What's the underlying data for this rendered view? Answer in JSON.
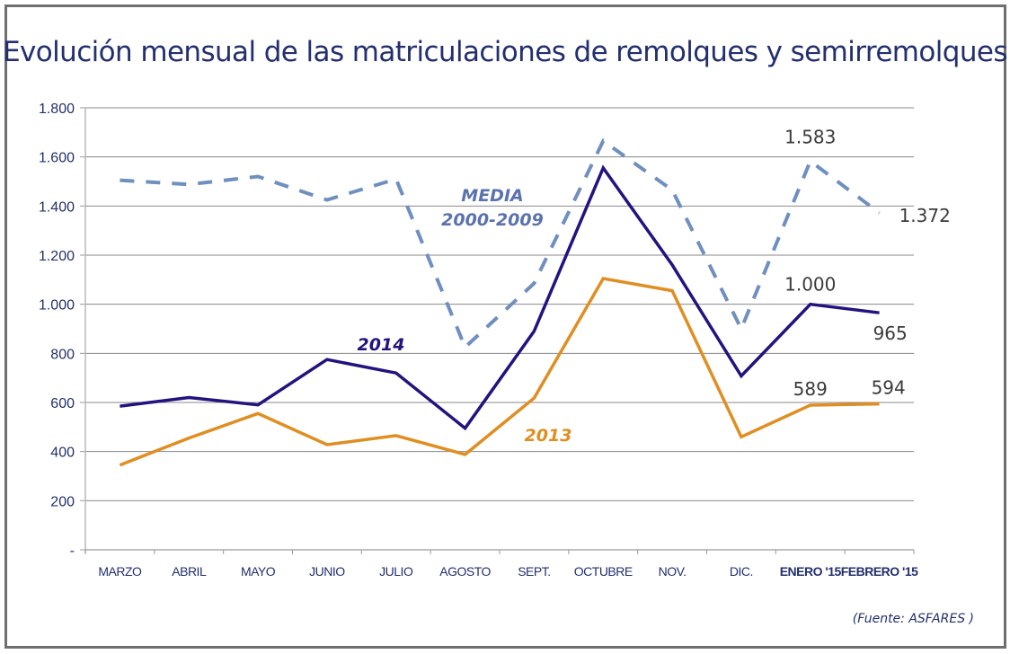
{
  "chart_data": {
    "type": "line",
    "title": "Evolución mensual de las matriculaciones de remolques y semirremolques",
    "xlabel": "",
    "ylabel": "",
    "ylim": [
      0,
      1800
    ],
    "yticks": [
      0,
      200,
      400,
      600,
      800,
      1000,
      1200,
      1400,
      1600,
      1800
    ],
    "ytick_labels": [
      "-",
      "200",
      "400",
      "600",
      "800",
      "1.000",
      "1.200",
      "1.400",
      "1.600",
      "1.800"
    ],
    "grid": true,
    "categories": [
      "MARZO",
      "ABRIL",
      "MAYO",
      "JUNIO",
      "JULIO",
      "AGOSTO",
      "SEPT.",
      "OCTUBRE",
      "NOV.",
      "DIC.",
      "ENERO '15",
      "FEBRERO '15"
    ],
    "bold_categories": [
      "ENERO '15",
      "FEBRERO '15"
    ],
    "series": [
      {
        "name": "MEDIA 2000-2009",
        "label_lines": [
          "MEDIA",
          "2000-2009"
        ],
        "color": "#6f8fc0",
        "dashed": true,
        "values": [
          1505,
          1488,
          1520,
          1425,
          1510,
          825,
          1085,
          1665,
          1465,
          900,
          1583,
          1372
        ]
      },
      {
        "name": "2014",
        "label_lines": [
          "2014"
        ],
        "color": "#24137f",
        "dashed": false,
        "values": [
          585,
          620,
          590,
          775,
          720,
          495,
          890,
          1555,
          1160,
          708,
          1000,
          965
        ]
      },
      {
        "name": "2013",
        "label_lines": [
          "2013"
        ],
        "color": "#e08e22",
        "dashed": false,
        "values": [
          345,
          455,
          555,
          428,
          465,
          388,
          618,
          1105,
          1055,
          460,
          589,
          594
        ]
      }
    ],
    "data_labels": [
      {
        "series": "MEDIA 2000-2009",
        "category": "ENERO '15",
        "text": "1.583"
      },
      {
        "series": "MEDIA 2000-2009",
        "category": "FEBRERO '15",
        "text": "1.372"
      },
      {
        "series": "2014",
        "category": "ENERO '15",
        "text": "1.000"
      },
      {
        "series": "2014",
        "category": "FEBRERO '15",
        "text": "965"
      },
      {
        "series": "2013",
        "category": "ENERO '15",
        "text": "589"
      },
      {
        "series": "2013",
        "category": "FEBRERO '15",
        "text": "594"
      }
    ],
    "source": "(Fuente:  ASFARES )"
  }
}
